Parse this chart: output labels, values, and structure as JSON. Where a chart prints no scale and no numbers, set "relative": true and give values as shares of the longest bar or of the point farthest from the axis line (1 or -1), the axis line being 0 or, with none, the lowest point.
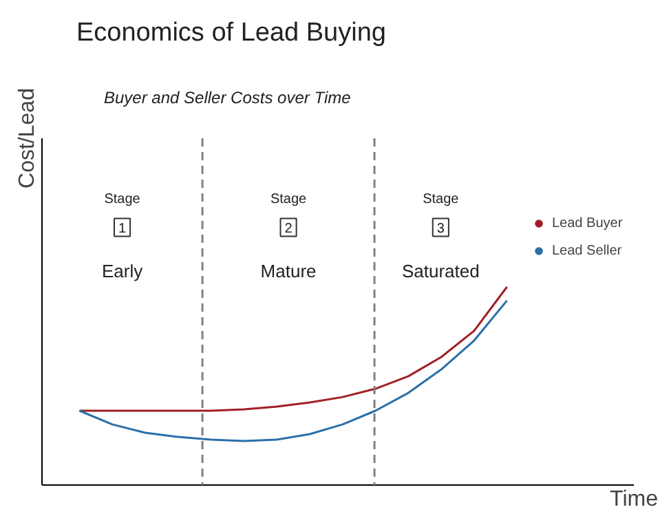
{
  "chart_data": {
    "type": "line",
    "title": "Economics of Lead Buying",
    "subtitle": "Buyer and Seller Costs over Time",
    "xlabel": "Time",
    "ylabel": "Cost/Lead",
    "relative": true,
    "categories": [
      null,
      null,
      null,
      null,
      null,
      null,
      null,
      null,
      null,
      null,
      null,
      null,
      null,
      null
    ],
    "series": [
      {
        "name": "Lead Buyer",
        "color": "#a01f24",
        "values": [
          0.375,
          0.375,
          0.375,
          0.375,
          0.375,
          0.382,
          0.396,
          0.417,
          0.444,
          0.486,
          0.549,
          0.646,
          0.778,
          1.0
        ]
      },
      {
        "name": "Lead Seller",
        "color": "#2a6fa8",
        "values": [
          0.375,
          0.306,
          0.264,
          0.243,
          0.229,
          0.222,
          0.229,
          0.257,
          0.306,
          0.375,
          0.465,
          0.583,
          0.729,
          0.931
        ]
      }
    ],
    "annotations": [
      "Stage",
      "1",
      "Early",
      "Stage",
      "2",
      "Mature",
      "Stage",
      "3",
      "Saturated"
    ],
    "legend": "right",
    "marker": "none",
    "line_style": "solid"
  }
}
